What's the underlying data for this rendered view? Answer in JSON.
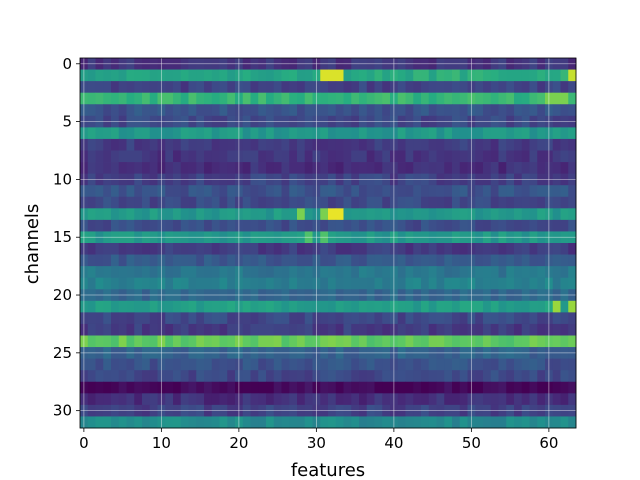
{
  "chart_data": {
    "type": "heatmap",
    "title": "",
    "xlabel": "features",
    "ylabel": "channels",
    "x_ticks": [
      0,
      10,
      20,
      30,
      40,
      50,
      60
    ],
    "y_ticks": [
      0,
      5,
      10,
      15,
      20,
      25,
      30
    ],
    "n_features": 64,
    "n_channels": 32,
    "grid": true,
    "colormap": "viridis",
    "value_range": [
      0,
      1
    ],
    "row_profiles": [
      [
        0.16,
        0.16
      ],
      [
        0.58,
        0.64
      ],
      [
        0.2,
        0.2
      ],
      [
        0.66,
        0.66
      ],
      [
        0.26,
        0.26
      ],
      [
        0.22,
        0.22
      ],
      [
        0.54,
        0.54
      ],
      [
        0.18,
        0.18
      ],
      [
        0.16,
        0.16
      ],
      [
        0.14,
        0.14
      ],
      [
        0.2,
        0.2
      ],
      [
        0.26,
        0.26
      ],
      [
        0.22,
        0.22
      ],
      [
        0.54,
        0.54
      ],
      [
        0.24,
        0.24
      ],
      [
        0.54,
        0.54
      ],
      [
        0.18,
        0.18
      ],
      [
        0.28,
        0.28
      ],
      [
        0.4,
        0.4
      ],
      [
        0.44,
        0.44
      ],
      [
        0.34,
        0.34
      ],
      [
        0.56,
        0.56
      ],
      [
        0.22,
        0.22
      ],
      [
        0.18,
        0.18
      ],
      [
        0.76,
        0.76
      ],
      [
        0.32,
        0.32
      ],
      [
        0.26,
        0.26
      ],
      [
        0.22,
        0.22
      ],
      [
        0.02,
        0.02
      ],
      [
        0.14,
        0.14
      ],
      [
        0.2,
        0.2
      ],
      [
        0.48,
        0.48
      ]
    ],
    "hotspots": [
      {
        "row": 1,
        "cols": [
          31,
          32,
          33
        ],
        "value": 0.95
      },
      {
        "row": 1,
        "cols": [
          63
        ],
        "value": 0.92
      },
      {
        "row": 3,
        "cols": [
          60,
          61,
          62
        ],
        "value": 0.8
      },
      {
        "row": 13,
        "cols": [
          32,
          33
        ],
        "value": 0.97
      },
      {
        "row": 13,
        "cols": [
          28,
          31
        ],
        "value": 0.8
      },
      {
        "row": 15,
        "cols": [
          29,
          31
        ],
        "value": 0.72
      },
      {
        "row": 21,
        "cols": [
          61,
          63
        ],
        "value": 0.85
      }
    ]
  }
}
